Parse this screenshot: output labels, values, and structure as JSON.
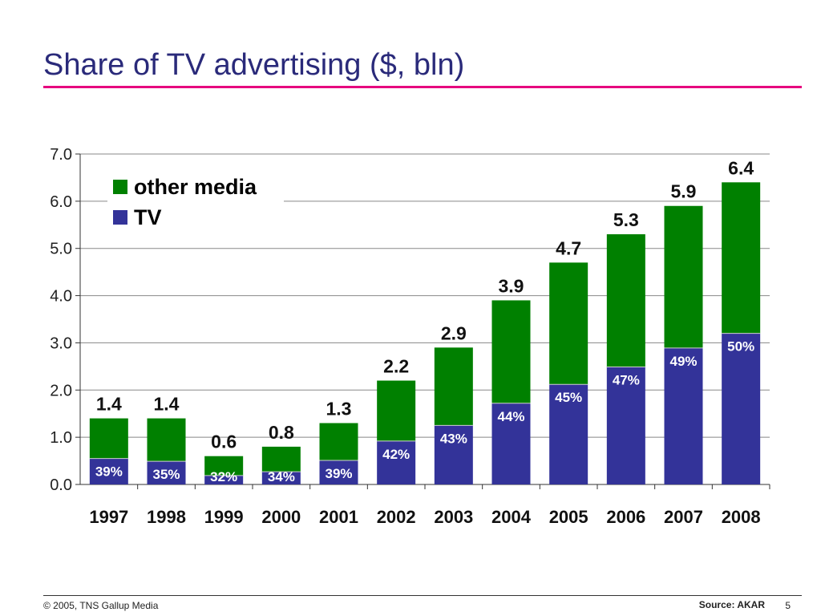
{
  "slide": {
    "title": "Share of TV advertising ($, bln)",
    "footer_left": "© 2005, TNS Gallup Media",
    "footer_source": "Source: AKAR",
    "page_number": "5"
  },
  "colors": {
    "accent_rule": "#e6007e",
    "title_text": "#2a2a7a",
    "other_media": "#008000",
    "tv": "#333399"
  },
  "chart_data": {
    "type": "bar",
    "stacked": true,
    "title": "Share of TV advertising ($, bln)",
    "categories": [
      "1997",
      "1998",
      "1999",
      "2000",
      "2001",
      "2002",
      "2003",
      "2004",
      "2005",
      "2006",
      "2007",
      "2008"
    ],
    "series": [
      {
        "name": "TV",
        "color": "#333399",
        "values": [
          0.55,
          0.49,
          0.19,
          0.27,
          0.51,
          0.92,
          1.25,
          1.72,
          2.12,
          2.49,
          2.89,
          3.2
        ],
        "labels": [
          "39%",
          "35%",
          "32%",
          "34%",
          "39%",
          "42%",
          "43%",
          "44%",
          "45%",
          "47%",
          "49%",
          "50%"
        ]
      },
      {
        "name": "other media",
        "color": "#008000",
        "values": [
          0.85,
          0.91,
          0.41,
          0.53,
          0.79,
          1.28,
          1.65,
          2.18,
          2.58,
          2.81,
          3.01,
          3.2
        ]
      }
    ],
    "totals": [
      1.4,
      1.4,
      0.6,
      0.8,
      1.3,
      2.2,
      2.9,
      3.9,
      4.7,
      5.3,
      5.9,
      6.4
    ],
    "total_labels": [
      "1.4",
      "1.4",
      "0.6",
      "0.8",
      "1.3",
      "2.2",
      "2.9",
      "3.9",
      "4.7",
      "5.3",
      "5.9",
      "6.4"
    ],
    "y_ticks": [
      "0.0",
      "1.0",
      "2.0",
      "3.0",
      "4.0",
      "5.0",
      "6.0",
      "7.0"
    ],
    "ylim": [
      0,
      7
    ],
    "grid": true,
    "legend": {
      "placement": "top-left",
      "entries": [
        "other media",
        "TV"
      ]
    },
    "xlabel": "",
    "ylabel": ""
  }
}
